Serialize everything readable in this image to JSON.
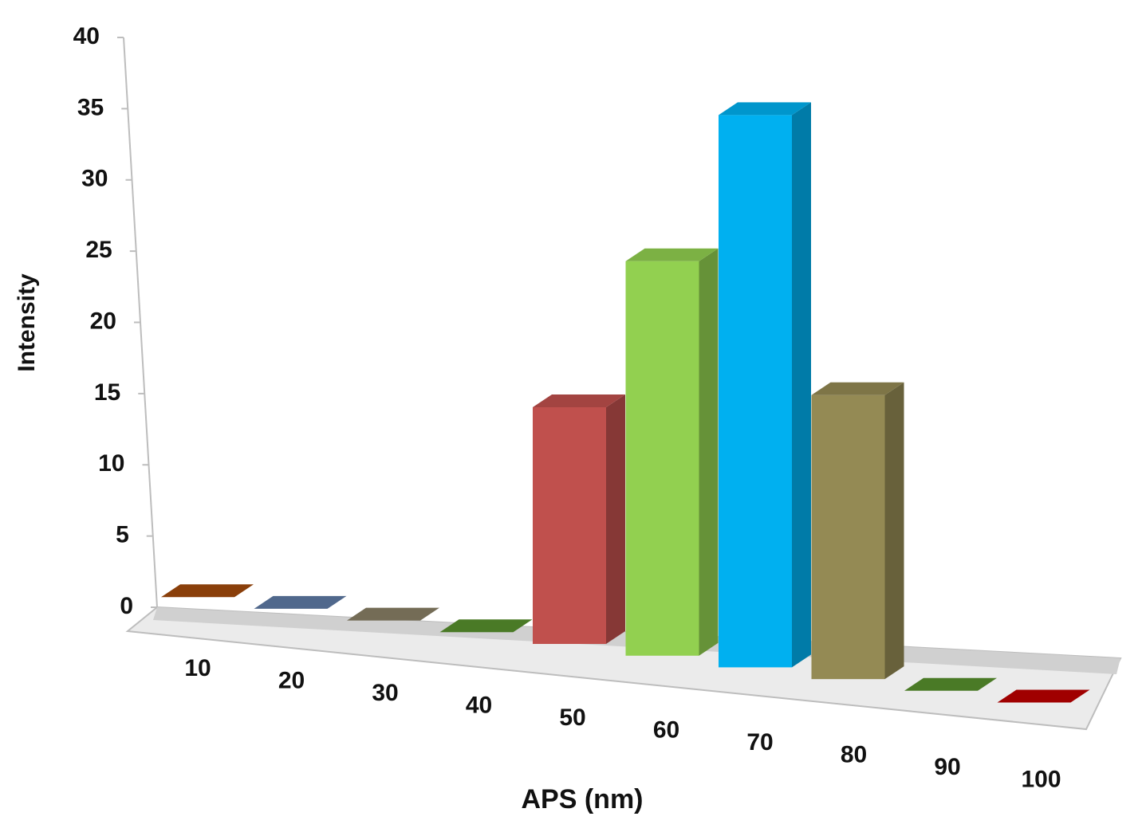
{
  "chart_data": {
    "type": "bar3d",
    "x_label": "APS (nm)",
    "y_label": "Intensity",
    "categories": [
      "10",
      "20",
      "30",
      "40",
      "50",
      "60",
      "70",
      "80",
      "90",
      "100"
    ],
    "values": [
      0,
      0,
      0,
      0,
      15,
      25,
      35,
      18,
      0,
      0
    ],
    "colors": [
      "#8a3f0a",
      "#50688c",
      "#746c56",
      "#4a7a26",
      "#c0504d",
      "#92d050",
      "#00b0f0",
      "#948a54",
      "#4a7a26",
      "#a00000"
    ],
    "ylim": [
      0,
      40
    ],
    "yticks": [
      0,
      5,
      10,
      15,
      20,
      25,
      30,
      35,
      40
    ],
    "grid": false
  }
}
